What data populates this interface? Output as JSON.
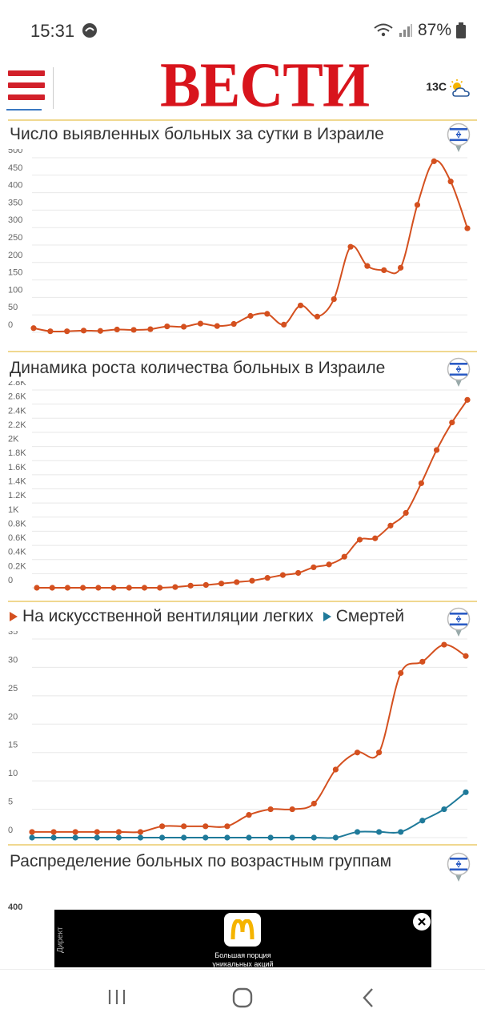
{
  "status": {
    "time": "15:31",
    "battery": "87%"
  },
  "header": {
    "logo": "ВЕСТИ",
    "weather_temp": "13C"
  },
  "sections": [
    {
      "title": "Число выявленных больных за сутки в Израиле"
    },
    {
      "title": "Динамика роста количества больных в Израиле"
    },
    {
      "title_a": "На искусственной вентиляции легких",
      "title_b": "Смертей"
    },
    {
      "title": "Распределение больных по возрастным группам"
    }
  ],
  "chart_data": [
    {
      "type": "line",
      "title": "Число выявленных больных за сутки в Израиле",
      "ylim": [
        0,
        500
      ],
      "y_ticks": [
        "500",
        "450",
        "400",
        "350",
        "300",
        "250",
        "200",
        "150",
        "100",
        "50",
        "0"
      ],
      "grid": true,
      "series": [
        {
          "color": "#d4501f",
          "values": [
            12,
            3,
            3,
            5,
            4,
            8,
            7,
            9,
            17,
            16,
            25,
            18,
            24,
            47,
            53,
            22,
            77,
            45,
            95,
            245,
            190,
            178,
            185,
            365,
            490,
            432,
            298
          ]
        }
      ]
    },
    {
      "type": "line",
      "title": "Динамика роста количества больных в Израиле",
      "ylim": [
        0,
        2800
      ],
      "y_ticks": [
        "2.8K",
        "2.6K",
        "2.4K",
        "2.2K",
        "2K",
        "1.8K",
        "1.6K",
        "1.4K",
        "1.2K",
        "1K",
        "0.8K",
        "0.6K",
        "0.4K",
        "0.2K",
        "0"
      ],
      "grid": true,
      "series": [
        {
          "color": "#d4501f",
          "values": [
            0,
            0,
            0,
            0,
            0,
            0,
            0,
            0,
            0,
            10,
            30,
            40,
            60,
            80,
            100,
            140,
            180,
            210,
            290,
            330,
            440,
            680,
            700,
            880,
            1060,
            1480,
            1950,
            2340,
            2660
          ]
        }
      ]
    },
    {
      "type": "line",
      "ylim": [
        0,
        35
      ],
      "y_ticks": [
        "35",
        "30",
        "25",
        "20",
        "15",
        "10",
        "5",
        "0"
      ],
      "grid": true,
      "series": [
        {
          "name": "На искусственной вентиляции легких",
          "color": "#d4501f",
          "values": [
            1,
            1,
            1,
            1,
            1,
            1,
            2,
            2,
            2,
            2,
            4,
            5,
            5,
            6,
            12,
            15,
            15,
            29,
            31,
            34,
            32
          ]
        },
        {
          "name": "Смертей",
          "color": "#1f7a9a",
          "values": [
            0,
            0,
            0,
            0,
            0,
            0,
            0,
            0,
            0,
            0,
            0,
            0,
            0,
            0,
            0,
            1,
            1,
            1,
            3,
            5,
            8
          ]
        }
      ]
    },
    {
      "type": "bar",
      "title": "Распределение больных по возрастным группам",
      "y_ticks": [
        "400"
      ]
    }
  ],
  "ad": {
    "tag": "Директ",
    "text_line1": "Большая порция",
    "text_line2": "уникальных акций"
  }
}
